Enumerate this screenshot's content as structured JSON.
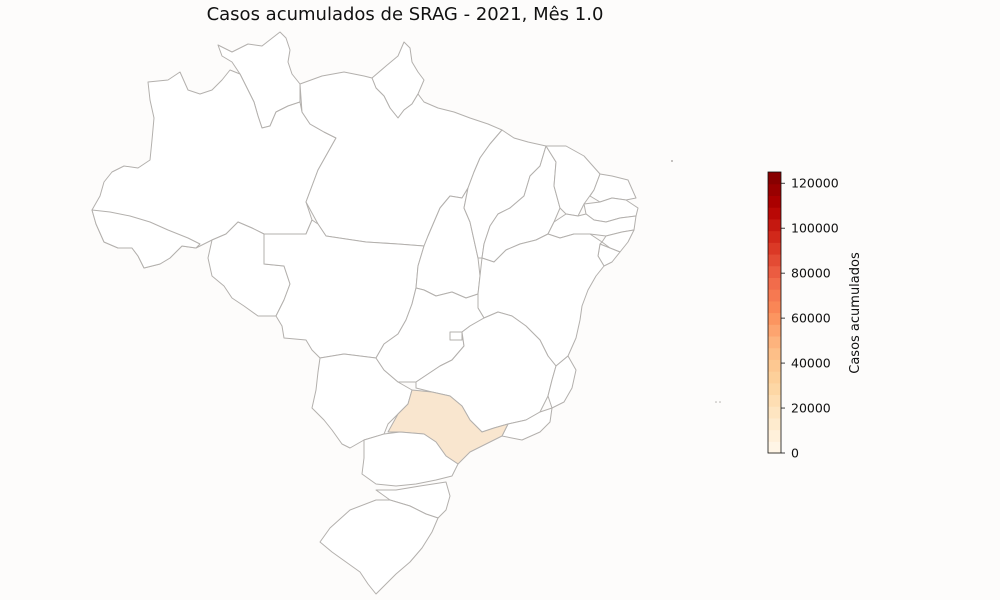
{
  "title": "Casos acumulados de SRAG - 2021, Mês 1.0",
  "colorbar": {
    "label": "Casos acumulados",
    "min": 0,
    "max": 125000,
    "ticks": [
      0,
      20000,
      40000,
      60000,
      80000,
      100000,
      120000
    ],
    "tick_labels": [
      "0",
      "20000",
      "40000",
      "60000",
      "80000",
      "100000",
      "120000"
    ],
    "colormap": "OrRd",
    "stops": [
      "#fff7ec",
      "#fee8c8",
      "#fdd49e",
      "#fdbb84",
      "#fc8d59",
      "#ef6548",
      "#d7301f",
      "#b30000",
      "#7f0000"
    ]
  },
  "colors": {
    "background": "#fdfcfb",
    "border": "#b3b0ad",
    "highlight": "#f9e6cf"
  },
  "highlighted_state": {
    "name": "SP",
    "color": "#f9e6cf"
  }
}
